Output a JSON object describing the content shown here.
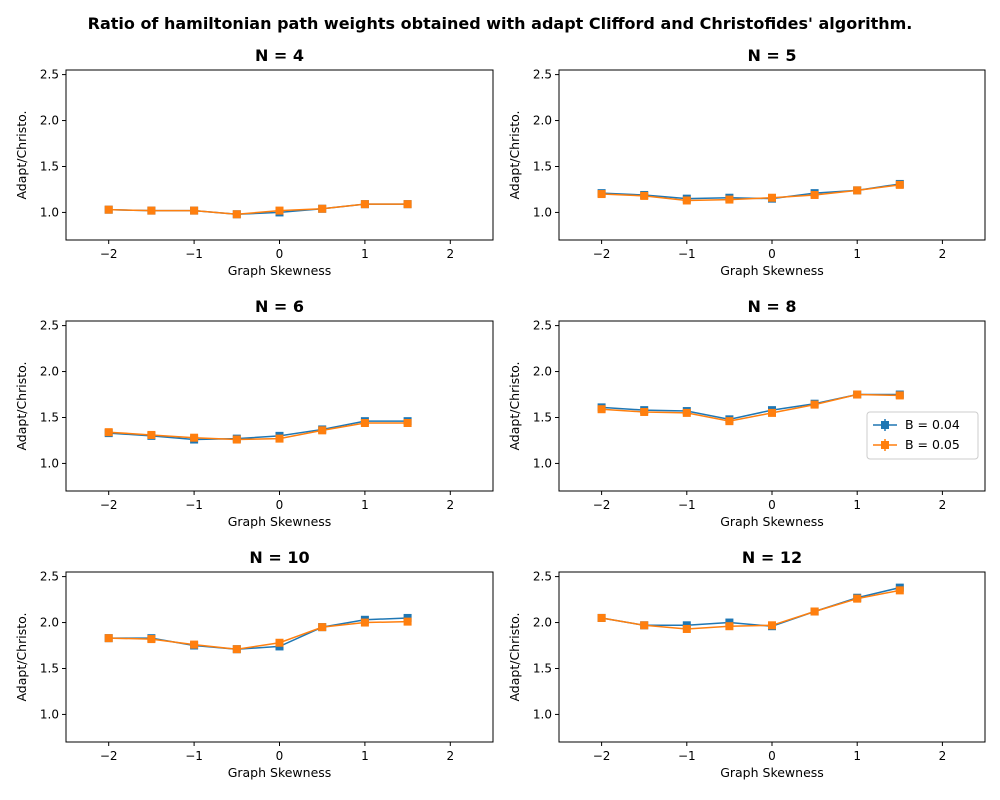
{
  "figure": {
    "title": "Ratio of hamiltonian path weights obtained with adapt Clifford and Christofides' algorithm."
  },
  "colors": {
    "series_1": "#1f77b4",
    "series_2": "#ff7f0e"
  },
  "legend": {
    "placement": "right of the N = 8 panel",
    "entries": [
      "B = 0.04",
      "B = 0.05"
    ]
  },
  "chart_data": [
    {
      "type": "line",
      "title": "N = 4",
      "xlabel": "Graph Skewness",
      "ylabel": "Adapt/Christo.",
      "xlim": [
        -2.5,
        2.5
      ],
      "ylim": [
        0.7,
        2.55
      ],
      "xticks": [
        -2,
        -1,
        0,
        1,
        2
      ],
      "yticks": [
        1.0,
        1.5,
        2.0,
        2.5
      ],
      "x": [
        -2,
        -1.5,
        -1,
        -0.5,
        0,
        0.5,
        1,
        1.5
      ],
      "series": [
        {
          "name": "B = 0.04",
          "values": [
            1.03,
            1.02,
            1.02,
            0.98,
            1.0,
            1.04,
            1.09,
            1.09
          ]
        },
        {
          "name": "B = 0.05",
          "values": [
            1.03,
            1.02,
            1.02,
            0.98,
            1.02,
            1.04,
            1.09,
            1.09
          ]
        }
      ]
    },
    {
      "type": "line",
      "title": "N = 5",
      "xlabel": "Graph Skewness",
      "ylabel": "Adapt/Christo.",
      "xlim": [
        -2.5,
        2.5
      ],
      "ylim": [
        0.7,
        2.55
      ],
      "xticks": [
        -2,
        -1,
        0,
        1,
        2
      ],
      "yticks": [
        1.0,
        1.5,
        2.0,
        2.5
      ],
      "x": [
        -2,
        -1.5,
        -1,
        -0.5,
        0,
        0.5,
        1,
        1.5
      ],
      "series": [
        {
          "name": "B = 0.04",
          "values": [
            1.21,
            1.19,
            1.15,
            1.16,
            1.15,
            1.21,
            1.24,
            1.31
          ]
        },
        {
          "name": "B = 0.05",
          "values": [
            1.2,
            1.18,
            1.13,
            1.14,
            1.16,
            1.19,
            1.24,
            1.3
          ]
        }
      ]
    },
    {
      "type": "line",
      "title": "N = 6",
      "xlabel": "Graph Skewness",
      "ylabel": "Adapt/Christo.",
      "xlim": [
        -2.5,
        2.5
      ],
      "ylim": [
        0.7,
        2.55
      ],
      "xticks": [
        -2,
        -1,
        0,
        1,
        2
      ],
      "yticks": [
        1.0,
        1.5,
        2.0,
        2.5
      ],
      "x": [
        -2,
        -1.5,
        -1,
        -0.5,
        0,
        0.5,
        1,
        1.5
      ],
      "series": [
        {
          "name": "B = 0.04",
          "values": [
            1.33,
            1.3,
            1.26,
            1.27,
            1.3,
            1.37,
            1.46,
            1.46
          ]
        },
        {
          "name": "B = 0.05",
          "values": [
            1.34,
            1.31,
            1.28,
            1.26,
            1.27,
            1.36,
            1.44,
            1.44
          ]
        }
      ]
    },
    {
      "type": "line",
      "title": "N = 8",
      "xlabel": "Graph Skewness",
      "ylabel": "Adapt/Christo.",
      "xlim": [
        -2.5,
        2.5
      ],
      "ylim": [
        0.7,
        2.55
      ],
      "xticks": [
        -2,
        -1,
        0,
        1,
        2
      ],
      "yticks": [
        1.0,
        1.5,
        2.0,
        2.5
      ],
      "x": [
        -2,
        -1.5,
        -1,
        -0.5,
        0,
        0.5,
        1,
        1.5
      ],
      "series": [
        {
          "name": "B = 0.04",
          "values": [
            1.61,
            1.58,
            1.57,
            1.48,
            1.58,
            1.65,
            1.75,
            1.75
          ]
        },
        {
          "name": "B = 0.05",
          "values": [
            1.59,
            1.56,
            1.55,
            1.46,
            1.55,
            1.64,
            1.75,
            1.74
          ]
        }
      ]
    },
    {
      "type": "line",
      "title": "N = 10",
      "xlabel": "Graph Skewness",
      "ylabel": "Adapt/Christo.",
      "xlim": [
        -2.5,
        2.5
      ],
      "ylim": [
        0.7,
        2.55
      ],
      "xticks": [
        -2,
        -1,
        0,
        1,
        2
      ],
      "yticks": [
        1.0,
        1.5,
        2.0,
        2.5
      ],
      "x": [
        -2,
        -1.5,
        -1,
        -0.5,
        0,
        0.5,
        1,
        1.5
      ],
      "series": [
        {
          "name": "B = 0.04",
          "values": [
            1.83,
            1.83,
            1.75,
            1.71,
            1.74,
            1.95,
            2.03,
            2.05
          ]
        },
        {
          "name": "B = 0.05",
          "values": [
            1.83,
            1.82,
            1.76,
            1.71,
            1.78,
            1.95,
            2.0,
            2.01
          ]
        }
      ]
    },
    {
      "type": "line",
      "title": "N = 12",
      "xlabel": "Graph Skewness",
      "ylabel": "Adapt/Christo.",
      "xlim": [
        -2.5,
        2.5
      ],
      "ylim": [
        0.7,
        2.55
      ],
      "xticks": [
        -2,
        -1,
        0,
        1,
        2
      ],
      "yticks": [
        1.0,
        1.5,
        2.0,
        2.5
      ],
      "x": [
        -2,
        -1.5,
        -1,
        -0.5,
        0,
        0.5,
        1,
        1.5
      ],
      "series": [
        {
          "name": "B = 0.04",
          "values": [
            2.05,
            1.97,
            1.97,
            2.0,
            1.96,
            2.12,
            2.27,
            2.38
          ]
        },
        {
          "name": "B = 0.05",
          "values": [
            2.05,
            1.97,
            1.93,
            1.96,
            1.97,
            2.12,
            2.26,
            2.35
          ]
        }
      ]
    }
  ]
}
